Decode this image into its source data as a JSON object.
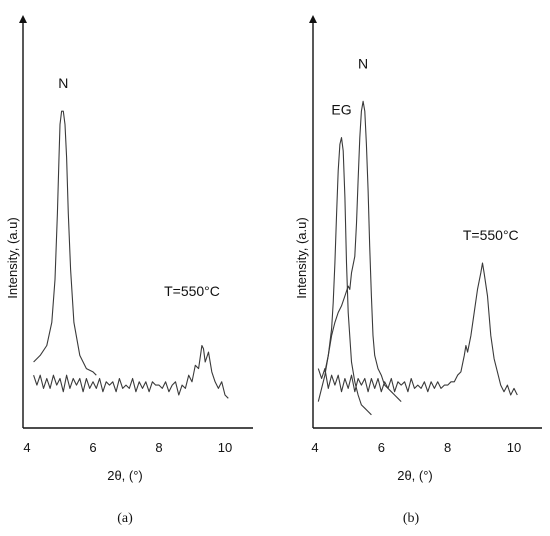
{
  "chart_data": [
    {
      "type": "line",
      "panel_label": "(a)",
      "xlabel": "2θ, (°)",
      "ylabel": "Intensity, (a.u)",
      "xlim": [
        4,
        10.4
      ],
      "ylim": [
        0,
        100
      ],
      "xticks": [
        "4",
        "6",
        "8",
        "10"
      ],
      "grid": false,
      "annotations": [
        {
          "text": "N",
          "x": 5.1,
          "y": 103
        },
        {
          "text": "T=550°C",
          "x": 9.0,
          "y": 40
        }
      ],
      "series": [
        {
          "x": [
            4.2,
            4.4,
            4.6,
            4.75,
            4.85,
            4.92,
            4.97,
            5.0,
            5.05,
            5.1,
            5.15,
            5.2,
            5.25,
            5.32,
            5.42,
            5.6,
            5.8,
            6.0,
            6.1
          ],
          "values": [
            20,
            22,
            25,
            32,
            45,
            65,
            82,
            92,
            96,
            96,
            92,
            82,
            65,
            48,
            32,
            22,
            18,
            17,
            16
          ]
        },
        {
          "x": [
            4.2,
            4.3,
            4.4,
            4.5,
            4.6,
            4.7,
            4.8,
            4.9,
            5.0,
            5.1,
            5.2,
            5.3,
            5.4,
            5.5,
            5.6,
            5.7,
            5.8,
            5.9,
            6.0,
            6.1,
            6.2,
            6.3,
            6.4,
            6.5,
            6.6,
            6.7,
            6.8,
            6.9,
            7.0,
            7.1,
            7.2,
            7.3,
            7.4,
            7.5,
            7.6,
            7.7,
            7.8,
            7.9,
            8.0,
            8.1,
            8.2,
            8.3,
            8.4,
            8.5,
            8.6,
            8.7,
            8.8,
            8.9,
            9.0,
            9.1,
            9.2,
            9.3,
            9.35,
            9.4,
            9.5,
            9.6,
            9.7,
            9.8,
            9.9,
            10.0,
            10.1
          ],
          "values": [
            16,
            13,
            16,
            12,
            15,
            12,
            16,
            13,
            15,
            11,
            16,
            12,
            15,
            13,
            15,
            11,
            15,
            12,
            14,
            12,
            15,
            11,
            14,
            13,
            14,
            11,
            15,
            12,
            13,
            12,
            15,
            11,
            14,
            12,
            14,
            11,
            14,
            13,
            13,
            12,
            14,
            11,
            13,
            14,
            10,
            13,
            12,
            16,
            14,
            19,
            18,
            25,
            24,
            20,
            23,
            17,
            14,
            12,
            14,
            10,
            9
          ]
        }
      ]
    },
    {
      "type": "line",
      "panel_label": "(b)",
      "xlabel": "2θ, (°)",
      "ylabel": "Intensity, (a.u)",
      "xlim": [
        4,
        10.4
      ],
      "ylim": [
        0,
        100
      ],
      "xticks": [
        "4",
        "6",
        "8",
        "10"
      ],
      "grid": false,
      "annotations": [
        {
          "text": "EG",
          "x": 4.8,
          "y": 95
        },
        {
          "text": "N",
          "x": 5.45,
          "y": 109
        },
        {
          "text": "T=550°C",
          "x": 9.3,
          "y": 57
        }
      ],
      "series": [
        {
          "x": [
            4.3,
            4.4,
            4.5,
            4.55,
            4.6,
            4.65,
            4.7,
            4.75,
            4.8,
            4.85,
            4.9,
            4.95,
            5.0,
            5.1,
            5.2,
            5.3,
            5.4,
            5.5,
            5.6,
            5.7
          ],
          "values": [
            17,
            22,
            30,
            38,
            50,
            65,
            78,
            86,
            88,
            84,
            70,
            50,
            35,
            20,
            14,
            10,
            7,
            6,
            5,
            4
          ]
        },
        {
          "x": [
            4.1,
            4.2,
            4.3,
            4.4,
            4.5,
            4.6,
            4.7,
            4.8,
            4.9,
            5.0,
            5.05,
            5.1,
            5.2,
            5.25,
            5.3,
            5.35,
            5.4,
            5.45,
            5.5,
            5.55,
            5.6,
            5.65,
            5.7,
            5.75,
            5.8,
            5.9,
            6.0,
            6.1,
            6.2,
            6.3,
            6.4,
            6.5,
            6.6
          ],
          "values": [
            8,
            12,
            16,
            22,
            28,
            32,
            35,
            37,
            40,
            43,
            42,
            47,
            52,
            62,
            75,
            88,
            96,
            99,
            96,
            86,
            72,
            55,
            40,
            28,
            22,
            18,
            16,
            13,
            12,
            11,
            10,
            9,
            8
          ]
        },
        {
          "x": [
            4.1,
            4.2,
            4.3,
            4.4,
            4.5,
            4.6,
            4.7,
            4.8,
            4.9,
            5.0,
            5.1,
            5.2,
            5.3,
            5.4,
            5.5,
            5.6,
            5.7,
            5.8,
            5.9,
            6.0,
            6.1,
            6.2,
            6.3,
            6.4,
            6.5,
            6.6,
            6.7,
            6.8,
            6.9,
            7.0,
            7.1,
            7.2,
            7.3,
            7.4,
            7.5,
            7.6,
            7.7,
            7.8,
            7.9,
            8.0,
            8.1,
            8.2,
            8.3,
            8.4,
            8.5,
            8.55,
            8.6,
            8.7,
            8.8,
            8.9,
            9.0,
            9.05,
            9.1,
            9.2,
            9.3,
            9.4,
            9.5,
            9.6,
            9.7,
            9.8,
            9.9,
            10.0,
            10.1
          ],
          "values": [
            18,
            15,
            18,
            12,
            16,
            13,
            16,
            11,
            15,
            12,
            16,
            11,
            15,
            13,
            15,
            11,
            15,
            12,
            15,
            11,
            14,
            12,
            15,
            11,
            14,
            13,
            14,
            11,
            15,
            12,
            13,
            12,
            14,
            11,
            14,
            12,
            14,
            12,
            13,
            13,
            14,
            14,
            16,
            17,
            22,
            25,
            23,
            28,
            35,
            42,
            47,
            50,
            47,
            40,
            28,
            21,
            17,
            13,
            11,
            13,
            10,
            12,
            10
          ]
        }
      ]
    }
  ]
}
